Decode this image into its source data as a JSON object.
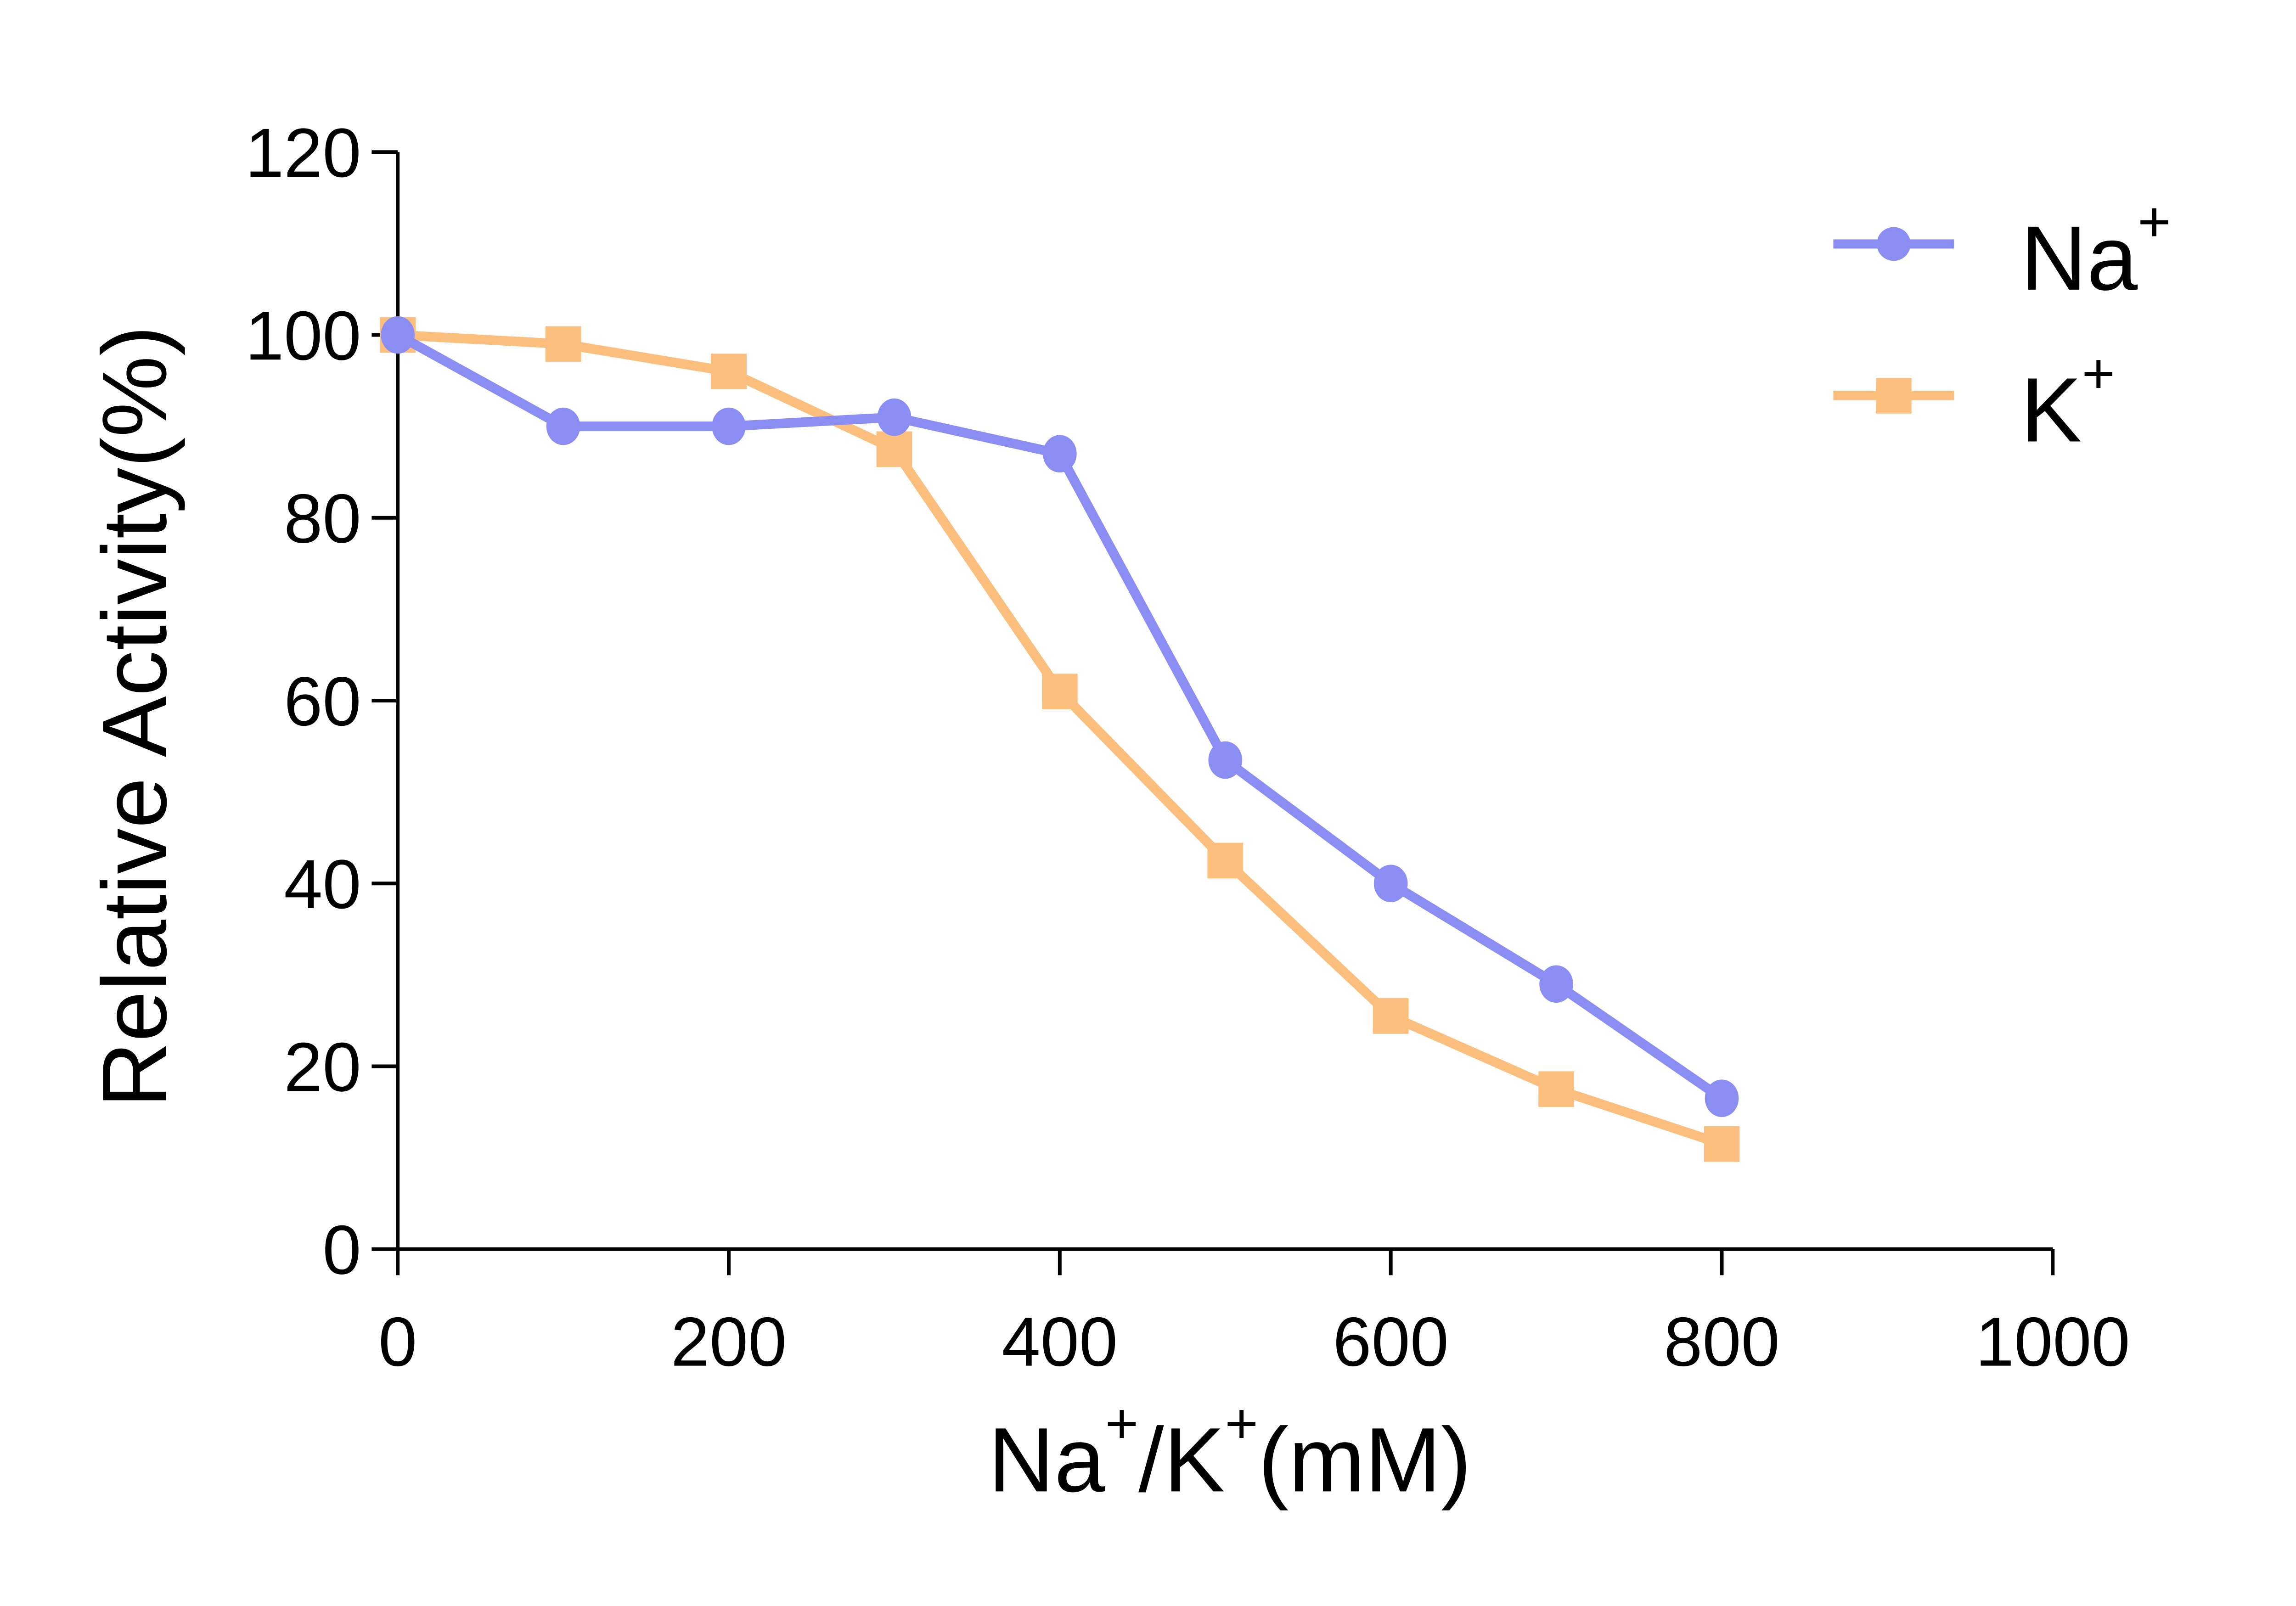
{
  "chart_data": {
    "type": "line",
    "title": "",
    "xlabel": "Na+/K+(mM)",
    "ylabel": "Relative Activity(%)",
    "x": [
      0,
      100,
      200,
      300,
      400,
      500,
      600,
      700,
      800
    ],
    "series": [
      {
        "name": "Na+",
        "marker": "circle",
        "color": "#8A8EF2",
        "values": [
          100,
          90,
          90,
          91,
          87,
          53.5,
          40,
          29,
          16.5
        ]
      },
      {
        "name": "K+",
        "marker": "square",
        "color": "#FBBE7D",
        "values": [
          100,
          99,
          96,
          87.5,
          61,
          42.5,
          25.5,
          17.5,
          11.5
        ]
      }
    ],
    "xlim": [
      0,
      1000
    ],
    "ylim": [
      0,
      120
    ],
    "x_ticks": [
      0,
      200,
      400,
      600,
      800,
      1000
    ],
    "y_ticks": [
      0,
      20,
      40,
      60,
      80,
      100,
      120
    ],
    "grid": false,
    "legend_position": "upper-right",
    "legend_entries": [
      "Na+",
      "K+"
    ],
    "axis_color": "#000000",
    "text_color": "#000000",
    "background": "#FFFFFF"
  }
}
